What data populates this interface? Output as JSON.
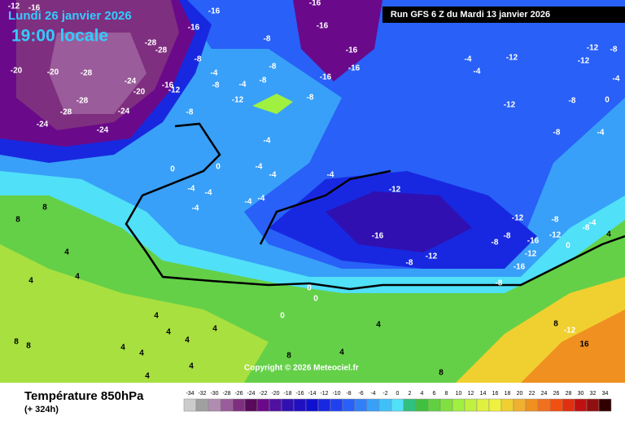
{
  "header": {
    "date": "Lundi 26 janvier 2026",
    "time": "19:00 locale",
    "run": "Run GFS 6 Z du Mardi 13 janvier 2026"
  },
  "footer": {
    "title": "Température 850hPa",
    "lead": "(+ 324h)",
    "copyright": "Copyright © 2026 Meteociel.fr"
  },
  "legend": {
    "ticks": [
      -34,
      -32,
      -30,
      -28,
      -26,
      -24,
      -22,
      -20,
      -18,
      -16,
      -14,
      -12,
      -10,
      -8,
      -6,
      -4,
      -2,
      0,
      2,
      4,
      6,
      8,
      10,
      12,
      14,
      16,
      18,
      20,
      22,
      24,
      26,
      28,
      30,
      32,
      34
    ],
    "colors": [
      "#cccccc",
      "#a0a0a0",
      "#b08cb0",
      "#9a5c9a",
      "#7f2f7f",
      "#5a0a5a",
      "#6a0a8a",
      "#5010a0",
      "#3010b0",
      "#2010c0",
      "#1010d0",
      "#1828e0",
      "#2040f0",
      "#2860f8",
      "#3080f8",
      "#38a0f8",
      "#40c0f8",
      "#50e0f8",
      "#30c080",
      "#40c040",
      "#60d040",
      "#80e040",
      "#a0f040",
      "#c0f040",
      "#e0f040",
      "#f0f040",
      "#f0d030",
      "#f0b030",
      "#f09020",
      "#f07020",
      "#f05010",
      "#e03010",
      "#c01010",
      "#901010",
      "#300000"
    ]
  },
  "map_labels": [
    -12,
    -16,
    -16,
    -16,
    -16,
    -16,
    -16,
    -16,
    -16,
    -28,
    -28,
    -20,
    -20,
    -28,
    -24,
    -20,
    -28,
    -24,
    -28,
    -24,
    -24,
    -16,
    -12,
    -8,
    -8,
    -4,
    -8,
    -4,
    -8,
    -8,
    -12,
    -8,
    -8,
    -4,
    -4,
    -4,
    -12,
    -12,
    -12,
    -8,
    -12,
    -8,
    0,
    -4,
    -8,
    -4,
    0,
    0,
    -4,
    -4,
    -4,
    -4,
    -4,
    -4,
    -4,
    -4,
    -12,
    -16,
    -12,
    -8,
    -8,
    -8,
    -16,
    -12,
    -12,
    -8,
    -8,
    -12,
    -16,
    0,
    -4,
    -8,
    4,
    8,
    8,
    4,
    4,
    4,
    0,
    0,
    0,
    4,
    4,
    4,
    4,
    8,
    8,
    4,
    4,
    4,
    4,
    8,
    4,
    4,
    8,
    -12,
    16,
    8
  ]
}
